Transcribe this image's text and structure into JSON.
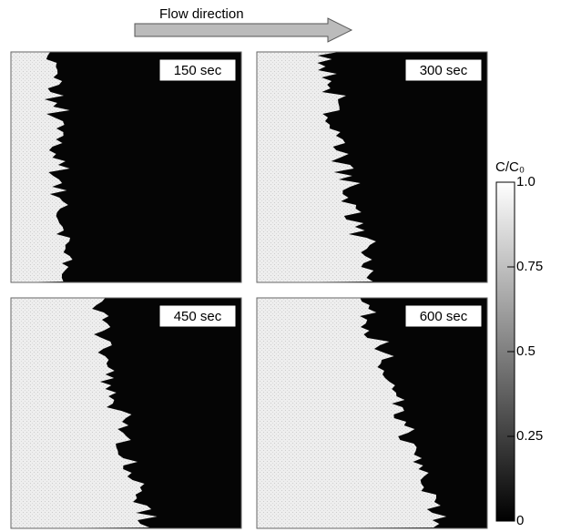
{
  "header": {
    "title": "Flow direction"
  },
  "panels": [
    {
      "label": "150 sec"
    },
    {
      "label": "300 sec"
    },
    {
      "label": "450 sec"
    },
    {
      "label": "600 sec"
    }
  ],
  "colorbar": {
    "title": "C/C₀",
    "range": [
      0,
      1
    ],
    "ticks": [
      0,
      0.25,
      0.5,
      0.75,
      {
        "value": 1,
        "label": "1.0"
      }
    ]
  }
}
